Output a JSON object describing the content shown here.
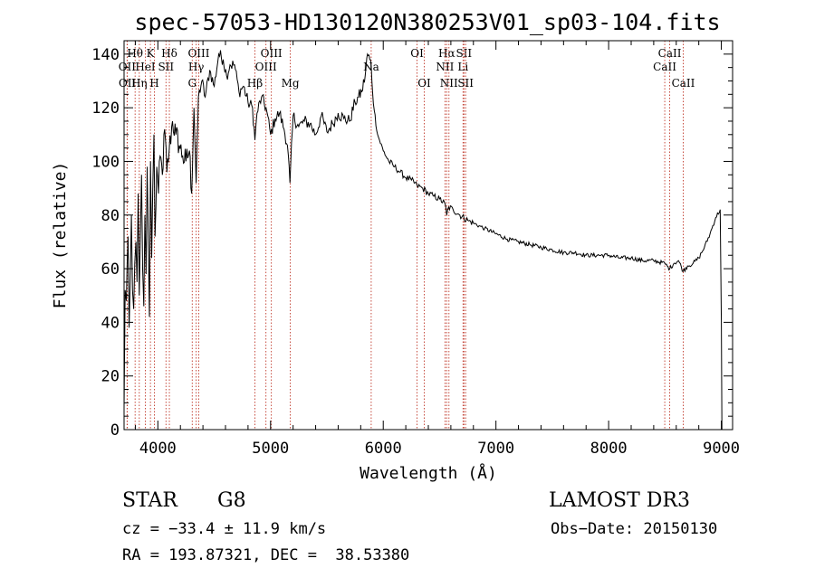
{
  "chart_data": {
    "type": "line",
    "title": "spec-57053-HD130120N380253V01_sp03-104.fits",
    "xlabel": "Wavelength (Å)",
    "ylabel": "Flux (relative)",
    "xlim": [
      3700,
      9100
    ],
    "ylim": [
      0,
      145
    ],
    "x_ticks": [
      4000,
      5000,
      6000,
      7000,
      8000,
      9000
    ],
    "x_tick_labels": [
      "4000",
      "5000",
      "6000",
      "7000",
      "8000",
      "9000"
    ],
    "y_ticks": [
      0,
      20,
      40,
      60,
      80,
      100,
      120,
      140
    ],
    "y_tick_labels": [
      "0",
      "20",
      "40",
      "60",
      "80",
      "100",
      "120",
      "140"
    ],
    "series": [
      {
        "name": "spectrum",
        "color": "#000000",
        "x": [
          3700,
          3710,
          3720,
          3735,
          3745,
          3755,
          3765,
          3775,
          3785,
          3795,
          3805,
          3815,
          3825,
          3835,
          3845,
          3855,
          3865,
          3875,
          3885,
          3895,
          3905,
          3915,
          3925,
          3935,
          3945,
          3955,
          3965,
          3975,
          3990,
          4005,
          4020,
          4040,
          4060,
          4080,
          4100,
          4130,
          4160,
          4190,
          4220,
          4250,
          4280,
          4300,
          4320,
          4340,
          4360,
          4390,
          4420,
          4460,
          4500,
          4540,
          4580,
          4610,
          4640,
          4680,
          4720,
          4760,
          4800,
          4840,
          4861,
          4880,
          4920,
          4960,
          5000,
          5040,
          5080,
          5120,
          5150,
          5172,
          5200,
          5250,
          5300,
          5350,
          5400,
          5450,
          5500,
          5550,
          5600,
          5650,
          5700,
          5750,
          5780,
          5810,
          5840,
          5860,
          5880,
          5893,
          5905,
          5920,
          5950,
          6000,
          6050,
          6100,
          6150,
          6200,
          6250,
          6300,
          6350,
          6400,
          6450,
          6500,
          6550,
          6563,
          6580,
          6620,
          6680,
          6750,
          6800,
          6850,
          6900,
          7000,
          7100,
          7200,
          7300,
          7400,
          7500,
          7600,
          7700,
          7800,
          7900,
          8000,
          8100,
          8200,
          8300,
          8400,
          8498,
          8520,
          8542,
          8580,
          8620,
          8662,
          8700,
          8750,
          8800,
          8850,
          8900,
          8950,
          8990,
          9000,
          9005
        ],
        "y": [
          8,
          52,
          48,
          72,
          38,
          55,
          80,
          52,
          45,
          62,
          70,
          55,
          88,
          50,
          72,
          95,
          60,
          46,
          80,
          58,
          98,
          70,
          42,
          100,
          64,
          90,
          110,
          72,
          98,
          88,
          102,
          95,
          112,
          96,
          104,
          115,
          110,
          106,
          102,
          100,
          104,
          88,
          120,
          92,
          124,
          130,
          124,
          134,
          128,
          140,
          138,
          132,
          136,
          136,
          126,
          128,
          122,
          120,
          108,
          118,
          124,
          120,
          110,
          116,
          118,
          112,
          106,
          92,
          117,
          113,
          115,
          114,
          110,
          117,
          111,
          114,
          118,
          116,
          115,
          122,
          124,
          126,
          132,
          140,
          138,
          136,
          126,
          119,
          110,
          104,
          100,
          98,
          96,
          94,
          93,
          91,
          90,
          88,
          87,
          86,
          84,
          80,
          83,
          82,
          80,
          78,
          77,
          76,
          75,
          73,
          71,
          70,
          69,
          68,
          67,
          66,
          66,
          65,
          65,
          65,
          64,
          64,
          63,
          63,
          62,
          61,
          60,
          62,
          63,
          59,
          61,
          62,
          64,
          68,
          73,
          79,
          82,
          40,
          0
        ]
      }
    ],
    "line_markers": [
      {
        "name": "Hθ",
        "wavelength": 3798,
        "row": 1
      },
      {
        "name": "OII",
        "wavelength": 3727,
        "row": 2
      },
      {
        "name": "OII",
        "wavelength": 3729,
        "row": 3
      },
      {
        "name": "K",
        "wavelength": 3934,
        "row": 1
      },
      {
        "name": "HeI",
        "wavelength": 3889,
        "row": 2
      },
      {
        "name": "Hη",
        "wavelength": 3835,
        "row": 3
      },
      {
        "name": "H",
        "wavelength": 3969,
        "row": 3
      },
      {
        "name": "Hδ",
        "wavelength": 4102,
        "row": 1
      },
      {
        "name": "SII",
        "wavelength": 4072,
        "row": 2
      },
      {
        "name": "OIII",
        "wavelength": 4363,
        "row": 1
      },
      {
        "name": "Hγ",
        "wavelength": 4340,
        "row": 2
      },
      {
        "name": "G",
        "wavelength": 4305,
        "row": 3
      },
      {
        "name": "OIII",
        "wavelength": 5007,
        "row": 1
      },
      {
        "name": "OIII",
        "wavelength": 4959,
        "row": 2
      },
      {
        "name": "Hβ",
        "wavelength": 4861,
        "row": 3
      },
      {
        "name": "Mg",
        "wavelength": 5175,
        "row": 3
      },
      {
        "name": "Na",
        "wavelength": 5893,
        "row": 2
      },
      {
        "name": "OI",
        "wavelength": 6300,
        "row": 1
      },
      {
        "name": "OI",
        "wavelength": 6364,
        "row": 3
      },
      {
        "name": "Hα",
        "wavelength": 6563,
        "row": 1
      },
      {
        "name": "SII",
        "wavelength": 6716,
        "row": 1
      },
      {
        "name": "NII",
        "wavelength": 6548,
        "row": 2
      },
      {
        "name": "Li",
        "wavelength": 6708,
        "row": 2
      },
      {
        "name": "NII",
        "wavelength": 6583,
        "row": 3
      },
      {
        "name": "SII",
        "wavelength": 6731,
        "row": 3
      },
      {
        "name": "CaII",
        "wavelength": 8542,
        "row": 1
      },
      {
        "name": "CaII",
        "wavelength": 8498,
        "row": 2
      },
      {
        "name": "CaII",
        "wavelength": 8662,
        "row": 3
      }
    ],
    "line_marker_color": "#c0392b"
  },
  "info": {
    "object_type": "STAR",
    "subclass": "G8",
    "survey": "LAMOST DR3",
    "cz_text": "cz = −33.4 ± 11.9 km/s",
    "obs_date_text": "Obs−Date: 20150130",
    "coords_text": "RA = 193.87321, DEC =  38.53380"
  }
}
